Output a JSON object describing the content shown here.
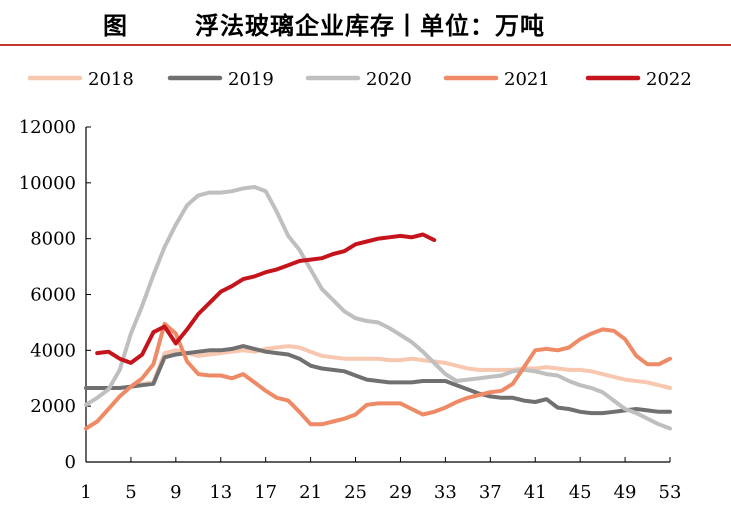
{
  "title": {
    "figure_label": "图",
    "text": "浮法玻璃企业库存丨单位：万吨",
    "rule_color": "#c0392b"
  },
  "chart_data": {
    "type": "line",
    "title": "浮法玻璃企业库存丨单位：万吨",
    "xlabel": "",
    "ylabel": "",
    "xlim": [
      1,
      53
    ],
    "ylim": [
      0,
      12000
    ],
    "x_ticks": [
      1,
      5,
      9,
      13,
      17,
      21,
      25,
      29,
      33,
      37,
      41,
      45,
      49,
      53
    ],
    "y_ticks": [
      0,
      2000,
      4000,
      6000,
      8000,
      10000,
      12000
    ],
    "grid": false,
    "legend_position": "top",
    "series": [
      {
        "name": "2018",
        "color": "#f7c7b0",
        "points": [
          [
            5,
            2700
          ],
          [
            6,
            2800
          ],
          [
            7,
            2850
          ],
          [
            8,
            3900
          ],
          [
            9,
            4000
          ],
          [
            10,
            3900
          ],
          [
            11,
            3800
          ],
          [
            12,
            3850
          ],
          [
            13,
            3900
          ],
          [
            14,
            3950
          ],
          [
            15,
            4000
          ],
          [
            16,
            3950
          ],
          [
            17,
            4050
          ],
          [
            18,
            4100
          ],
          [
            19,
            4150
          ],
          [
            20,
            4100
          ],
          [
            21,
            3950
          ],
          [
            22,
            3800
          ],
          [
            23,
            3750
          ],
          [
            24,
            3700
          ],
          [
            25,
            3700
          ],
          [
            26,
            3700
          ],
          [
            27,
            3700
          ],
          [
            28,
            3650
          ],
          [
            29,
            3650
          ],
          [
            30,
            3700
          ],
          [
            31,
            3650
          ],
          [
            32,
            3600
          ],
          [
            33,
            3550
          ],
          [
            34,
            3450
          ],
          [
            35,
            3350
          ],
          [
            36,
            3300
          ],
          [
            37,
            3300
          ],
          [
            38,
            3300
          ],
          [
            39,
            3300
          ],
          [
            40,
            3350
          ],
          [
            41,
            3350
          ],
          [
            42,
            3400
          ],
          [
            43,
            3350
          ],
          [
            44,
            3300
          ],
          [
            45,
            3300
          ],
          [
            46,
            3250
          ],
          [
            47,
            3150
          ],
          [
            48,
            3050
          ],
          [
            49,
            2950
          ],
          [
            50,
            2900
          ],
          [
            51,
            2850
          ],
          [
            52,
            2750
          ],
          [
            53,
            2650
          ]
        ]
      },
      {
        "name": "2019",
        "color": "#707070",
        "points": [
          [
            1,
            2650
          ],
          [
            2,
            2650
          ],
          [
            3,
            2650
          ],
          [
            4,
            2650
          ],
          [
            5,
            2700
          ],
          [
            6,
            2750
          ],
          [
            7,
            2800
          ],
          [
            8,
            3750
          ],
          [
            9,
            3850
          ],
          [
            10,
            3900
          ],
          [
            11,
            3950
          ],
          [
            12,
            4000
          ],
          [
            13,
            4000
          ],
          [
            14,
            4050
          ],
          [
            15,
            4150
          ],
          [
            16,
            4050
          ],
          [
            17,
            3950
          ],
          [
            18,
            3900
          ],
          [
            19,
            3850
          ],
          [
            20,
            3700
          ],
          [
            21,
            3450
          ],
          [
            22,
            3350
          ],
          [
            23,
            3300
          ],
          [
            24,
            3250
          ],
          [
            25,
            3100
          ],
          [
            26,
            2950
          ],
          [
            27,
            2900
          ],
          [
            28,
            2850
          ],
          [
            29,
            2850
          ],
          [
            30,
            2850
          ],
          [
            31,
            2900
          ],
          [
            32,
            2900
          ],
          [
            33,
            2900
          ],
          [
            34,
            2750
          ],
          [
            35,
            2600
          ],
          [
            36,
            2450
          ],
          [
            37,
            2350
          ],
          [
            38,
            2300
          ],
          [
            39,
            2300
          ],
          [
            40,
            2200
          ],
          [
            41,
            2150
          ],
          [
            42,
            2250
          ],
          [
            43,
            1950
          ],
          [
            44,
            1900
          ],
          [
            45,
            1800
          ],
          [
            46,
            1750
          ],
          [
            47,
            1750
          ],
          [
            48,
            1800
          ],
          [
            49,
            1850
          ],
          [
            50,
            1900
          ],
          [
            51,
            1850
          ],
          [
            52,
            1800
          ],
          [
            53,
            1800
          ]
        ]
      },
      {
        "name": "2020",
        "color": "#bfbfbf",
        "points": [
          [
            1,
            2050
          ],
          [
            2,
            2300
          ],
          [
            3,
            2600
          ],
          [
            4,
            3300
          ],
          [
            5,
            4600
          ],
          [
            6,
            5600
          ],
          [
            7,
            6700
          ],
          [
            8,
            7700
          ],
          [
            9,
            8500
          ],
          [
            10,
            9200
          ],
          [
            11,
            9550
          ],
          [
            12,
            9650
          ],
          [
            13,
            9650
          ],
          [
            14,
            9700
          ],
          [
            15,
            9800
          ],
          [
            16,
            9850
          ],
          [
            17,
            9700
          ],
          [
            18,
            8950
          ],
          [
            19,
            8100
          ],
          [
            20,
            7600
          ],
          [
            21,
            6900
          ],
          [
            22,
            6200
          ],
          [
            23,
            5800
          ],
          [
            24,
            5400
          ],
          [
            25,
            5150
          ],
          [
            26,
            5050
          ],
          [
            27,
            5000
          ],
          [
            28,
            4800
          ],
          [
            29,
            4550
          ],
          [
            30,
            4300
          ],
          [
            31,
            3950
          ],
          [
            32,
            3550
          ],
          [
            33,
            3150
          ],
          [
            34,
            2900
          ],
          [
            35,
            2950
          ],
          [
            36,
            3000
          ],
          [
            37,
            3050
          ],
          [
            38,
            3100
          ],
          [
            39,
            3250
          ],
          [
            40,
            3300
          ],
          [
            41,
            3250
          ],
          [
            42,
            3150
          ],
          [
            43,
            3100
          ],
          [
            44,
            2900
          ],
          [
            45,
            2750
          ],
          [
            46,
            2650
          ],
          [
            47,
            2500
          ],
          [
            48,
            2200
          ],
          [
            49,
            1900
          ],
          [
            50,
            1750
          ],
          [
            51,
            1550
          ],
          [
            52,
            1350
          ],
          [
            53,
            1200
          ]
        ]
      },
      {
        "name": "2021",
        "color": "#ee8a65",
        "points": [
          [
            1,
            1200
          ],
          [
            2,
            1450
          ],
          [
            3,
            1900
          ],
          [
            4,
            2350
          ],
          [
            5,
            2700
          ],
          [
            6,
            3000
          ],
          [
            7,
            3500
          ],
          [
            8,
            4950
          ],
          [
            9,
            4600
          ],
          [
            10,
            3600
          ],
          [
            11,
            3150
          ],
          [
            12,
            3100
          ],
          [
            13,
            3100
          ],
          [
            14,
            3000
          ],
          [
            15,
            3150
          ],
          [
            16,
            2850
          ],
          [
            17,
            2550
          ],
          [
            18,
            2300
          ],
          [
            19,
            2200
          ],
          [
            20,
            1800
          ],
          [
            21,
            1350
          ],
          [
            22,
            1350
          ],
          [
            23,
            1450
          ],
          [
            24,
            1550
          ],
          [
            25,
            1700
          ],
          [
            26,
            2050
          ],
          [
            27,
            2100
          ],
          [
            28,
            2100
          ],
          [
            29,
            2100
          ],
          [
            30,
            1900
          ],
          [
            31,
            1700
          ],
          [
            32,
            1800
          ],
          [
            33,
            1950
          ],
          [
            34,
            2150
          ],
          [
            35,
            2300
          ],
          [
            36,
            2400
          ],
          [
            37,
            2500
          ],
          [
            38,
            2550
          ],
          [
            39,
            2800
          ],
          [
            40,
            3400
          ],
          [
            41,
            4000
          ],
          [
            42,
            4050
          ],
          [
            43,
            4000
          ],
          [
            44,
            4100
          ],
          [
            45,
            4400
          ],
          [
            46,
            4600
          ],
          [
            47,
            4750
          ],
          [
            48,
            4700
          ],
          [
            49,
            4400
          ],
          [
            50,
            3800
          ],
          [
            51,
            3500
          ],
          [
            52,
            3500
          ],
          [
            53,
            3700
          ]
        ]
      },
      {
        "name": "2022",
        "color": "#c5141c",
        "points": [
          [
            2,
            3900
          ],
          [
            3,
            3950
          ],
          [
            4,
            3700
          ],
          [
            5,
            3550
          ],
          [
            6,
            3850
          ],
          [
            7,
            4650
          ],
          [
            8,
            4850
          ],
          [
            9,
            4250
          ],
          [
            10,
            4750
          ],
          [
            11,
            5300
          ],
          [
            12,
            5700
          ],
          [
            13,
            6100
          ],
          [
            14,
            6300
          ],
          [
            15,
            6550
          ],
          [
            16,
            6650
          ],
          [
            17,
            6800
          ],
          [
            18,
            6900
          ],
          [
            19,
            7050
          ],
          [
            20,
            7200
          ],
          [
            21,
            7250
          ],
          [
            22,
            7300
          ],
          [
            23,
            7450
          ],
          [
            24,
            7550
          ],
          [
            25,
            7800
          ],
          [
            26,
            7900
          ],
          [
            27,
            8000
          ],
          [
            28,
            8050
          ],
          [
            29,
            8100
          ],
          [
            30,
            8050
          ],
          [
            31,
            8150
          ],
          [
            32,
            7950
          ]
        ]
      }
    ]
  }
}
